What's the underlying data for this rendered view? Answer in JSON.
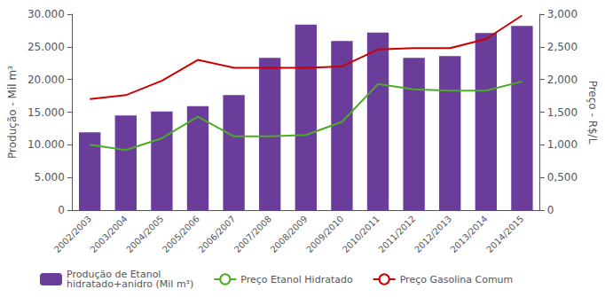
{
  "chart_data": {
    "type": "bar",
    "categories": [
      "2002/2003",
      "2003/2004",
      "2004/2005",
      "2005/2006",
      "2006/2007",
      "2007/2008",
      "2008/2009",
      "2009/2010",
      "2010/2011",
      "2011/2012",
      "2012/2013",
      "2013/2014",
      "2014/2015"
    ],
    "series": [
      {
        "name": "Produção de Etanol\nhidratado+anidro (Mil m³)",
        "type": "bar",
        "color": "#6a3d9a",
        "values": [
          11900,
          14500,
          15100,
          15900,
          17600,
          23300,
          28400,
          25900,
          27200,
          23300,
          23600,
          27100,
          28200
        ]
      },
      {
        "name": "Preço Etanol Hidratado",
        "type": "line",
        "axis": "y2",
        "color": "#4dac26",
        "values": [
          1.0,
          0.92,
          1.1,
          1.43,
          1.13,
          1.13,
          1.15,
          1.35,
          1.93,
          1.85,
          1.83,
          1.83,
          1.97
        ]
      },
      {
        "name": "Preço Gasolina Comum",
        "type": "line",
        "axis": "y2",
        "color": "#cc0000",
        "values": [
          1.7,
          1.76,
          1.98,
          2.3,
          2.18,
          2.18,
          2.18,
          2.2,
          2.46,
          2.48,
          2.48,
          2.62,
          2.98
        ]
      }
    ],
    "ylabel": "Produção - Mil m³",
    "y2label": "Preço - R$/L",
    "ylim": [
      0,
      30000
    ],
    "yticks": [
      0,
      {
        "value": 5000,
        "label": "5.000"
      },
      {
        "value": 10000,
        "label": "10.000"
      },
      {
        "value": 15000,
        "label": "15.000"
      },
      {
        "value": 20000,
        "label": "20.000"
      },
      {
        "value": 25000,
        "label": "25.000"
      },
      {
        "value": 30000,
        "label": "30.000"
      }
    ],
    "y2lim": [
      0,
      3.0
    ],
    "y2ticks": [
      0,
      {
        "value": 0.5,
        "label": "0,500"
      },
      {
        "value": 1.0,
        "label": "1,000"
      },
      {
        "value": 1.5,
        "label": "1,500"
      },
      {
        "value": 2.0,
        "label": "2,000"
      },
      {
        "value": 2.5,
        "label": "2,500"
      },
      {
        "value": 3.0,
        "label": "3,000"
      }
    ],
    "grid": false,
    "legend": "lower left"
  }
}
